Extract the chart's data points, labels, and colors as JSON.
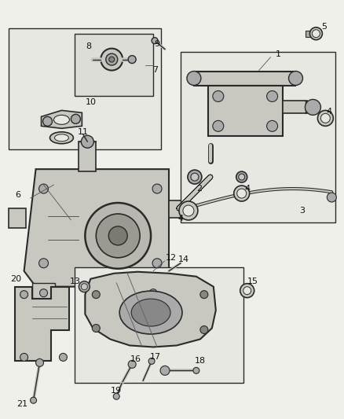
{
  "bg": "#f0f0eb",
  "lc": "#2a2a2a",
  "fc_light": "#e8e8e3",
  "fc_part": "#c8c8c0",
  "fc_dark": "#aaaaaa",
  "fig_w": 4.38,
  "fig_h": 5.33,
  "dpi": 100
}
